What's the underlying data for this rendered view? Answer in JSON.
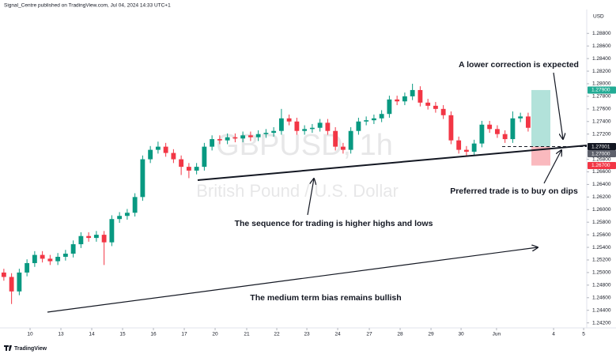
{
  "chart_data": {
    "type": "candlestick",
    "header": "Signal_Centre published on TradingView.com, Jul 04, 2024 14:33 UTC+1",
    "currency": "USD",
    "brand": "TradingView",
    "watermark": {
      "symbol": "GBPUSD, 1h",
      "description": "British Pound / U.S. Dollar"
    },
    "annotations": [
      "A lower correction is expected",
      "Preferred trade is to buy on dips",
      "The sequence for trading is higher highs and lows",
      "The medium term bias remains bullish"
    ],
    "up_color": "#089981",
    "down_color": "#f23645",
    "grid": false,
    "xlim": [
      -0.5,
      75.6
    ],
    "ylim": [
      1.2412,
      1.2918
    ],
    "xticks": [
      {
        "value": 3.4,
        "label": "10"
      },
      {
        "value": 7.4,
        "label": "13"
      },
      {
        "value": 11.4,
        "label": "14"
      },
      {
        "value": 15.4,
        "label": "15"
      },
      {
        "value": 19.4,
        "label": "16"
      },
      {
        "value": 23.4,
        "label": "17"
      },
      {
        "value": 27.4,
        "label": "20"
      },
      {
        "value": 31.5,
        "label": "21"
      },
      {
        "value": 35.4,
        "label": "22"
      },
      {
        "value": 39.3,
        "label": "23"
      },
      {
        "value": 43.3,
        "label": "24"
      },
      {
        "value": 47.4,
        "label": "27"
      },
      {
        "value": 51.4,
        "label": "28"
      },
      {
        "value": 55.4,
        "label": "29"
      },
      {
        "value": 59.3,
        "label": "30"
      },
      {
        "value": 63.9,
        "label": "Jun"
      },
      {
        "value": 71.3,
        "label": "4"
      },
      {
        "value": 75.2,
        "label": "5"
      }
    ],
    "yticks": [
      {
        "value": 1.242,
        "label": "1.24200"
      },
      {
        "value": 1.244,
        "label": "1.24400"
      },
      {
        "value": 1.246,
        "label": "1.24600"
      },
      {
        "value": 1.248,
        "label": "1.24800"
      },
      {
        "value": 1.25,
        "label": "1.25000"
      },
      {
        "value": 1.252,
        "label": "1.25200"
      },
      {
        "value": 1.254,
        "label": "1.25400"
      },
      {
        "value": 1.256,
        "label": "1.25600"
      },
      {
        "value": 1.258,
        "label": "1.25800"
      },
      {
        "value": 1.26,
        "label": "1.26000"
      },
      {
        "value": 1.262,
        "label": "1.26200"
      },
      {
        "value": 1.264,
        "label": "1.26400"
      },
      {
        "value": 1.266,
        "label": "1.26600"
      },
      {
        "value": 1.268,
        "label": "1.26800"
      },
      {
        "value": 1.272,
        "label": "1.27200"
      },
      {
        "value": 1.274,
        "label": "1.27400"
      },
      {
        "value": 1.276,
        "label": "1.27600"
      },
      {
        "value": 1.278,
        "label": "1.27800"
      },
      {
        "value": 1.28,
        "label": "1.28000"
      },
      {
        "value": 1.282,
        "label": "1.28200"
      },
      {
        "value": 1.284,
        "label": "1.28400"
      },
      {
        "value": 1.286,
        "label": "1.28600"
      },
      {
        "value": 1.288,
        "label": "1.28800"
      }
    ],
    "price_labels": [
      {
        "value": 1.279,
        "label": "1.27900",
        "color": "#22ab94"
      },
      {
        "value": 1.27001,
        "label": "1.27001",
        "color": "#131722"
      },
      {
        "value": 1.27,
        "label": "1.27000",
        "color": "#5d606b"
      },
      {
        "value": 1.267,
        "label": "1.26700",
        "color": "#f23645"
      }
    ],
    "ohlc": [
      [
        1.25,
        1.2506,
        1.2487,
        1.2493
      ],
      [
        1.2493,
        1.2499,
        1.245,
        1.247
      ],
      [
        1.247,
        1.2506,
        1.2464,
        1.25
      ],
      [
        1.25,
        1.2521,
        1.2494,
        1.2515
      ],
      [
        1.2515,
        1.2534,
        1.2509,
        1.2528
      ],
      [
        1.2528,
        1.2534,
        1.2516,
        1.2522
      ],
      [
        1.2522,
        1.2528,
        1.2512,
        1.2518
      ],
      [
        1.2518,
        1.2531,
        1.2512,
        1.2525
      ],
      [
        1.2525,
        1.2536,
        1.2519,
        1.253
      ],
      [
        1.253,
        1.2551,
        1.2524,
        1.2545
      ],
      [
        1.2545,
        1.2564,
        1.2539,
        1.2558
      ],
      [
        1.2558,
        1.2564,
        1.2549,
        1.2555
      ],
      [
        1.2555,
        1.2566,
        1.2549,
        1.256
      ],
      [
        1.256,
        1.2566,
        1.2512,
        1.2548
      ],
      [
        1.2548,
        1.2591,
        1.2542,
        1.2585
      ],
      [
        1.2585,
        1.2596,
        1.2579,
        1.259
      ],
      [
        1.259,
        1.2601,
        1.2584,
        1.2595
      ],
      [
        1.2595,
        1.2626,
        1.2589,
        1.262
      ],
      [
        1.262,
        1.2686,
        1.2614,
        1.268
      ],
      [
        1.268,
        1.2701,
        1.2674,
        1.2695
      ],
      [
        1.2695,
        1.2708,
        1.2689,
        1.27
      ],
      [
        1.27,
        1.2706,
        1.2684,
        1.269
      ],
      [
        1.269,
        1.2696,
        1.2674,
        1.268
      ],
      [
        1.268,
        1.2686,
        1.2655,
        1.2668
      ],
      [
        1.2668,
        1.2674,
        1.265,
        1.2662
      ],
      [
        1.2662,
        1.2674,
        1.2656,
        1.2668
      ],
      [
        1.2668,
        1.2706,
        1.2662,
        1.27
      ],
      [
        1.27,
        1.2718,
        1.2694,
        1.2712
      ],
      [
        1.2712,
        1.2718,
        1.2704,
        1.271
      ],
      [
        1.271,
        1.2721,
        1.2704,
        1.2715
      ],
      [
        1.2715,
        1.2721,
        1.2707,
        1.2713
      ],
      [
        1.2713,
        1.2724,
        1.2707,
        1.2718
      ],
      [
        1.2718,
        1.2724,
        1.2709,
        1.2715
      ],
      [
        1.2715,
        1.2726,
        1.2709,
        1.272
      ],
      [
        1.272,
        1.2728,
        1.2714,
        1.2722
      ],
      [
        1.2722,
        1.2731,
        1.2716,
        1.2725
      ],
      [
        1.2725,
        1.276,
        1.2719,
        1.2745
      ],
      [
        1.2745,
        1.2751,
        1.2734,
        1.274
      ],
      [
        1.274,
        1.2746,
        1.2719,
        1.2725
      ],
      [
        1.2725,
        1.2734,
        1.2719,
        1.2728
      ],
      [
        1.2728,
        1.2736,
        1.2722,
        1.273
      ],
      [
        1.273,
        1.2744,
        1.2724,
        1.2738
      ],
      [
        1.2738,
        1.2744,
        1.2719,
        1.2725
      ],
      [
        1.2725,
        1.2731,
        1.2694,
        1.27
      ],
      [
        1.27,
        1.2706,
        1.2689,
        1.2695
      ],
      [
        1.2695,
        1.2731,
        1.2689,
        1.2725
      ],
      [
        1.2725,
        1.2746,
        1.2719,
        1.274
      ],
      [
        1.274,
        1.2748,
        1.2734,
        1.2742
      ],
      [
        1.2742,
        1.2751,
        1.2736,
        1.2745
      ],
      [
        1.2745,
        1.2758,
        1.2739,
        1.2752
      ],
      [
        1.2752,
        1.2781,
        1.2746,
        1.2775
      ],
      [
        1.2775,
        1.2781,
        1.2766,
        1.2772
      ],
      [
        1.2772,
        1.2786,
        1.2766,
        1.278
      ],
      [
        1.278,
        1.28,
        1.2774,
        1.279
      ],
      [
        1.279,
        1.2796,
        1.2764,
        1.277
      ],
      [
        1.277,
        1.2776,
        1.2759,
        1.2765
      ],
      [
        1.2765,
        1.2771,
        1.2754,
        1.276
      ],
      [
        1.276,
        1.2766,
        1.2744,
        1.275
      ],
      [
        1.275,
        1.2756,
        1.2704,
        1.271
      ],
      [
        1.271,
        1.2716,
        1.2689,
        1.2695
      ],
      [
        1.2695,
        1.2701,
        1.2684,
        1.2692
      ],
      [
        1.2692,
        1.2711,
        1.2686,
        1.2705
      ],
      [
        1.2705,
        1.2741,
        1.2699,
        1.2735
      ],
      [
        1.2735,
        1.2741,
        1.2722,
        1.2728
      ],
      [
        1.2728,
        1.2734,
        1.2714,
        1.272
      ],
      [
        1.272,
        1.2726,
        1.2706,
        1.2712
      ],
      [
        1.2712,
        1.2756,
        1.2706,
        1.2745
      ],
      [
        1.2745,
        1.2754,
        1.2739,
        1.2748
      ],
      [
        1.2748,
        1.2754,
        1.2724,
        1.273
      ]
    ]
  }
}
